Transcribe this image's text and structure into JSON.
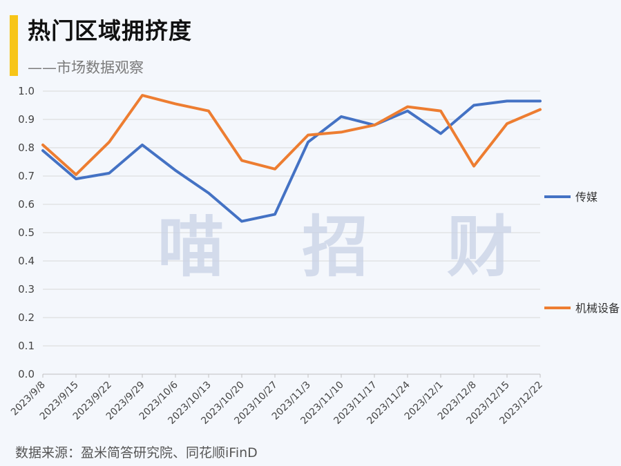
{
  "header": {
    "title": "热门区域拥挤度",
    "subtitle": "——市场数据观察"
  },
  "watermark": "喵 招 财",
  "source": "数据来源：盈米简答研究院、同花顺iFinD",
  "colors": {
    "accent": "#f7c518",
    "series_media": "#4472c4",
    "series_machinery": "#ed7d31"
  },
  "chart_data": {
    "type": "line",
    "x": [
      "2023/9/8",
      "2023/9/15",
      "2023/9/22",
      "2023/9/29",
      "2023/10/6",
      "2023/10/13",
      "2023/10/20",
      "2023/10/27",
      "2023/11/3",
      "2023/11/10",
      "2023/11/17",
      "2023/11/24",
      "2023/12/1",
      "2023/12/8",
      "2023/12/15",
      "2023/12/22"
    ],
    "series": [
      {
        "name": "传媒",
        "color": "#4472c4",
        "values": [
          0.79,
          0.69,
          0.71,
          0.81,
          0.72,
          0.64,
          0.54,
          0.565,
          0.82,
          0.91,
          0.88,
          0.93,
          0.85,
          0.95,
          0.965,
          0.965
        ]
      },
      {
        "name": "机械设备",
        "color": "#ed7d31",
        "values": [
          0.81,
          0.705,
          0.82,
          0.985,
          0.955,
          0.93,
          0.755,
          0.725,
          0.845,
          0.855,
          0.88,
          0.945,
          0.93,
          0.735,
          0.885,
          0.935
        ]
      }
    ],
    "yticks": [
      "0.0",
      "0.1",
      "0.2",
      "0.3",
      "0.4",
      "0.5",
      "0.6",
      "0.7",
      "0.8",
      "0.9",
      "1.0"
    ],
    "ylim": [
      0,
      1
    ],
    "grid": true,
    "legend_position": "right"
  }
}
